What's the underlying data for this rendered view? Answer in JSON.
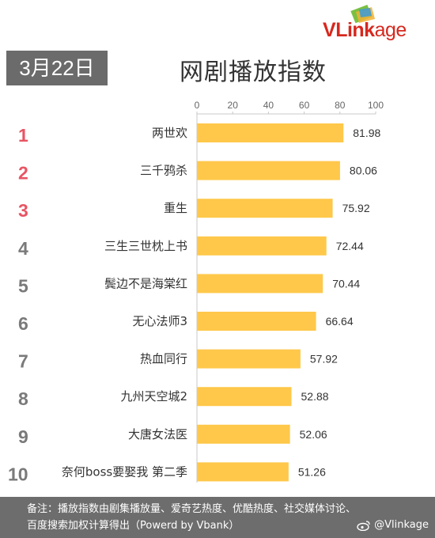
{
  "header": {
    "date": "3月22日",
    "title": "网剧播放指数",
    "brand_v": "V",
    "brand_link": "Link",
    "brand_age": "age"
  },
  "chart_data": {
    "type": "bar",
    "orientation": "horizontal",
    "title": "网剧播放指数",
    "categories": [
      "两世欢",
      "三千鸦杀",
      "重生",
      "三生三世枕上书",
      "鬓边不是海棠红",
      "无心法师3",
      "热血同行",
      "九州天空城2",
      "大唐女法医",
      "奈何boss要娶我 第二季"
    ],
    "ranks": [
      "1",
      "2",
      "3",
      "4",
      "5",
      "6",
      "7",
      "8",
      "9",
      "10"
    ],
    "values": [
      81.98,
      80.06,
      75.92,
      72.44,
      70.44,
      66.64,
      57.92,
      52.88,
      52.06,
      51.26
    ],
    "xlim": [
      0,
      100
    ],
    "xticks": [
      0,
      20,
      40,
      60,
      80,
      100
    ],
    "xtick_position": "top",
    "grid": false,
    "colors": {
      "bar": "#ffc84a",
      "rank_top3": "#e85563",
      "rank_other": "#7a7a7a",
      "axis": "#c8c8c8",
      "label": "#333333",
      "tick": "#666666"
    }
  },
  "footer": {
    "note_line1": "备注：播放指数由剧集播放量、爱奇艺热度、优酷热度、社交媒体讨论、",
    "note_line2": "百度搜索加权计算得出（Powerd by Vbank）",
    "watermark": "@Vlinkage"
  }
}
